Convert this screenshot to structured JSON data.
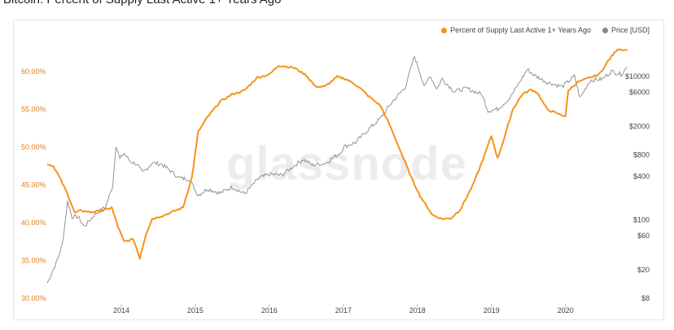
{
  "title": "Bitcoin: Percent of Supply Last Active 1+ Years Ago",
  "watermark": "glassnode",
  "colors": {
    "supply": "#f7931a",
    "price": "#888888",
    "left_axis": "#d9821f",
    "right_axis": "#444444"
  },
  "chart_data": {
    "type": "line",
    "title": "Bitcoin: Percent of Supply Last Active 1+ Years Ago",
    "x_ticks": [
      "2014",
      "2015",
      "2016",
      "2017",
      "2018",
      "2019",
      "2020"
    ],
    "y_left": {
      "ticks": [
        "30.00%",
        "35.00%",
        "40.00%",
        "45.00%",
        "50.00%",
        "55.00%",
        "60.00%"
      ],
      "range": [
        30,
        63.5
      ]
    },
    "y_right": {
      "scale": "log",
      "ticks": [
        "$8",
        "$20",
        "$60",
        "$100",
        "$400",
        "$800",
        "$2000",
        "$6000",
        "$10000"
      ],
      "range": [
        8,
        30000
      ]
    },
    "legend": {
      "position": "top-right",
      "entries": [
        "Percent of Supply Last Active 1+ Years Ago",
        "Price [USD]"
      ]
    },
    "grid": false,
    "series": [
      {
        "name": "Percent of Supply Last Active 1+ Years Ago",
        "axis": "left",
        "points": [
          [
            "2013-01-01",
            47.8
          ],
          [
            "2013-02-01",
            47.5
          ],
          [
            "2013-03-01",
            46.0
          ],
          [
            "2013-04-15",
            43.5
          ],
          [
            "2013-05-15",
            41.3
          ],
          [
            "2013-06-15",
            41.6
          ],
          [
            "2013-08-01",
            41.4
          ],
          [
            "2013-10-01",
            41.6
          ],
          [
            "2013-11-15",
            42.0
          ],
          [
            "2013-12-15",
            39.5
          ],
          [
            "2014-01-15",
            37.5
          ],
          [
            "2014-03-01",
            37.8
          ],
          [
            "2014-04-01",
            35.3
          ],
          [
            "2014-05-01",
            38.5
          ],
          [
            "2014-06-01",
            40.5
          ],
          [
            "2014-08-01",
            41.0
          ],
          [
            "2014-09-15",
            41.5
          ],
          [
            "2014-11-01",
            42.0
          ],
          [
            "2014-12-15",
            46.0
          ],
          [
            "2015-01-15",
            52.0
          ],
          [
            "2015-03-01",
            54.0
          ],
          [
            "2015-05-01",
            56.0
          ],
          [
            "2015-07-01",
            57.0
          ],
          [
            "2015-09-01",
            57.5
          ],
          [
            "2015-11-01",
            59.2
          ],
          [
            "2016-01-01",
            59.6
          ],
          [
            "2016-02-15",
            60.8
          ],
          [
            "2016-05-01",
            60.5
          ],
          [
            "2016-07-01",
            59.5
          ],
          [
            "2016-08-15",
            58.0
          ],
          [
            "2016-10-01",
            58.0
          ],
          [
            "2016-12-01",
            59.3
          ],
          [
            "2017-01-15",
            59.0
          ],
          [
            "2017-03-15",
            58.0
          ],
          [
            "2017-05-01",
            56.8
          ],
          [
            "2017-07-01",
            55.5
          ],
          [
            "2017-08-15",
            53.0
          ],
          [
            "2017-10-01",
            50.0
          ],
          [
            "2017-12-01",
            46.0
          ],
          [
            "2018-01-15",
            43.5
          ],
          [
            "2018-03-15",
            41.0
          ],
          [
            "2018-05-01",
            40.5
          ],
          [
            "2018-06-15",
            40.6
          ],
          [
            "2018-08-01",
            41.8
          ],
          [
            "2018-10-01",
            45.0
          ],
          [
            "2018-11-15",
            48.0
          ],
          [
            "2019-01-01",
            51.5
          ],
          [
            "2019-02-01",
            48.5
          ],
          [
            "2019-03-01",
            51.0
          ],
          [
            "2019-04-15",
            55.0
          ],
          [
            "2019-06-01",
            57.0
          ],
          [
            "2019-07-15",
            57.6
          ],
          [
            "2019-08-15",
            57.2
          ],
          [
            "2019-10-01",
            55.0
          ],
          [
            "2019-11-15",
            54.5
          ],
          [
            "2020-01-01",
            54.1
          ],
          [
            "2020-01-15",
            57.5
          ],
          [
            "2020-03-01",
            58.6
          ],
          [
            "2020-05-01",
            59.2
          ],
          [
            "2020-06-15",
            59.6
          ],
          [
            "2020-08-01",
            61.5
          ],
          [
            "2020-09-15",
            63.0
          ],
          [
            "2020-11-01",
            62.8
          ]
        ]
      },
      {
        "name": "Price [USD]",
        "axis": "right",
        "points": [
          [
            "2013-01-01",
            13
          ],
          [
            "2013-02-15",
            25
          ],
          [
            "2013-03-15",
            45
          ],
          [
            "2013-04-10",
            180
          ],
          [
            "2013-05-01",
            110
          ],
          [
            "2013-06-01",
            110
          ],
          [
            "2013-07-01",
            80
          ],
          [
            "2013-08-01",
            100
          ],
          [
            "2013-09-01",
            125
          ],
          [
            "2013-10-15",
            150
          ],
          [
            "2013-11-20",
            300
          ],
          [
            "2013-12-05",
            1100
          ],
          [
            "2013-12-25",
            700
          ],
          [
            "2014-01-15",
            850
          ],
          [
            "2014-02-15",
            650
          ],
          [
            "2014-03-15",
            600
          ],
          [
            "2014-04-15",
            450
          ],
          [
            "2014-06-01",
            620
          ],
          [
            "2014-07-15",
            600
          ],
          [
            "2014-09-01",
            480
          ],
          [
            "2014-10-15",
            380
          ],
          [
            "2014-12-01",
            370
          ],
          [
            "2015-01-15",
            220
          ],
          [
            "2015-03-01",
            270
          ],
          [
            "2015-05-01",
            235
          ],
          [
            "2015-07-01",
            285
          ],
          [
            "2015-09-01",
            230
          ],
          [
            "2015-11-10",
            380
          ],
          [
            "2016-01-01",
            430
          ],
          [
            "2016-03-01",
            420
          ],
          [
            "2016-06-15",
            700
          ],
          [
            "2016-08-01",
            580
          ],
          [
            "2016-10-01",
            610
          ],
          [
            "2016-12-15",
            850
          ],
          [
            "2017-01-05",
            1050
          ],
          [
            "2017-03-01",
            1200
          ],
          [
            "2017-05-01",
            1800
          ],
          [
            "2017-07-01",
            2600
          ],
          [
            "2017-09-01",
            4500
          ],
          [
            "2017-11-01",
            7000
          ],
          [
            "2017-12-17",
            19000
          ],
          [
            "2018-01-15",
            11000
          ],
          [
            "2018-02-06",
            7000
          ],
          [
            "2018-03-01",
            10500
          ],
          [
            "2018-04-05",
            6700
          ],
          [
            "2018-05-01",
            9200
          ],
          [
            "2018-06-30",
            6200
          ],
          [
            "2018-09-01",
            6800
          ],
          [
            "2018-11-15",
            5600
          ],
          [
            "2018-12-15",
            3300
          ],
          [
            "2019-02-01",
            3500
          ],
          [
            "2019-04-01",
            5000
          ],
          [
            "2019-06-26",
            12500
          ],
          [
            "2019-08-01",
            10300
          ],
          [
            "2019-10-01",
            8300
          ],
          [
            "2019-12-15",
            7200
          ],
          [
            "2020-02-15",
            10000
          ],
          [
            "2020-03-12",
            5000
          ],
          [
            "2020-05-01",
            8800
          ],
          [
            "2020-07-01",
            9200
          ],
          [
            "2020-08-15",
            11800
          ],
          [
            "2020-10-01",
            10700
          ],
          [
            "2020-11-01",
            13500
          ]
        ]
      }
    ]
  }
}
